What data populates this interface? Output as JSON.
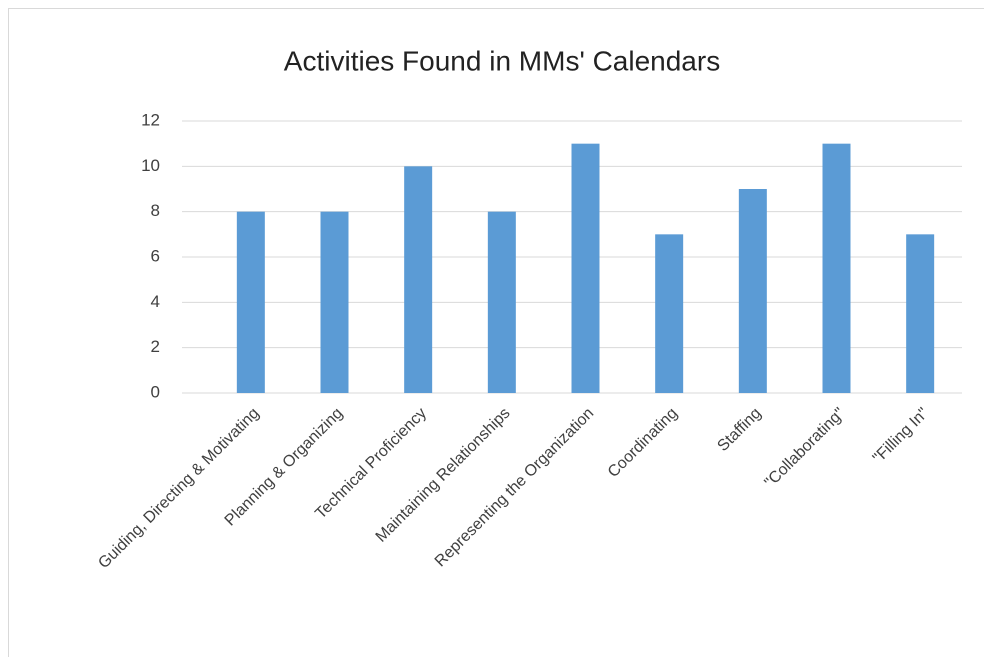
{
  "chart_data": {
    "type": "bar",
    "title": "Activities Found in MMs' Calendars",
    "categories": [
      "Guiding, Directing & Motivating",
      "Planning & Organizing",
      "Technical Proficiency",
      "Maintaining Relationships",
      "Representing the Organization",
      "Coordinating",
      "Staffing",
      "\"Collaborating\"",
      "\"Filling In\""
    ],
    "values": [
      8,
      8,
      10,
      8,
      11,
      7,
      9,
      11,
      7
    ],
    "color": "#5b9bd5",
    "ylim": [
      0,
      12
    ],
    "yticks": [
      0,
      2,
      4,
      6,
      8,
      10,
      12
    ],
    "grid": true
  }
}
